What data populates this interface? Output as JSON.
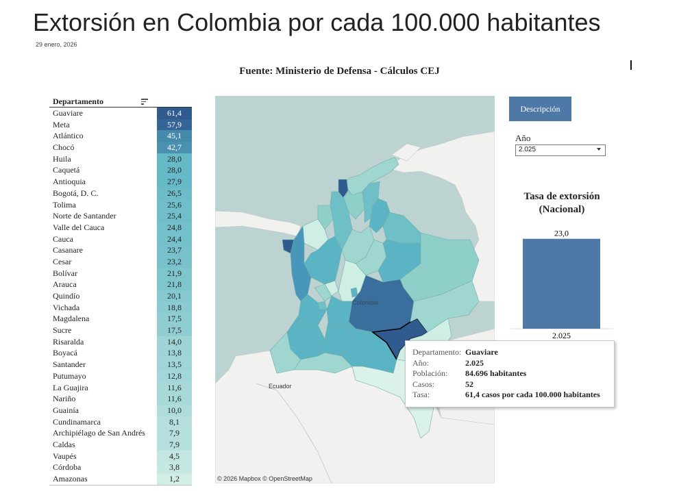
{
  "header": {
    "title": "Extorsión en Colombia por cada 100.000 habitantes",
    "date": "29 enero, 2026",
    "source": "Fuente: Ministerio de Defensa - Cálculos CEJ"
  },
  "table": {
    "column_header": "Departamento",
    "rows": [
      {
        "name": "Guaviare",
        "value": "61,4"
      },
      {
        "name": "Meta",
        "value": "57,9"
      },
      {
        "name": "Atlántico",
        "value": "45,1"
      },
      {
        "name": "Chocó",
        "value": "42,7"
      },
      {
        "name": "Huila",
        "value": "28,0"
      },
      {
        "name": "Caquetá",
        "value": "28,0"
      },
      {
        "name": "Antioquia",
        "value": "27,9"
      },
      {
        "name": "Bogotá, D. C.",
        "value": "26,5"
      },
      {
        "name": "Tolima",
        "value": "25,6"
      },
      {
        "name": "Norte de Santander",
        "value": "25,4"
      },
      {
        "name": "Valle del Cauca",
        "value": "24,8"
      },
      {
        "name": "Cauca",
        "value": "24,4"
      },
      {
        "name": "Casanare",
        "value": "23,7"
      },
      {
        "name": "Cesar",
        "value": "23,2"
      },
      {
        "name": "Bolívar",
        "value": "21,9"
      },
      {
        "name": "Arauca",
        "value": "21,8"
      },
      {
        "name": "Quindío",
        "value": "20,1"
      },
      {
        "name": "Vichada",
        "value": "18,8"
      },
      {
        "name": "Magdalena",
        "value": "17,5"
      },
      {
        "name": "Sucre",
        "value": "17,5"
      },
      {
        "name": "Risaralda",
        "value": "14,0"
      },
      {
        "name": "Boyacá",
        "value": "13,8"
      },
      {
        "name": "Santander",
        "value": "13,5"
      },
      {
        "name": "Putumayo",
        "value": "12,8"
      },
      {
        "name": "La Guajira",
        "value": "11,6"
      },
      {
        "name": "Nariño",
        "value": "11,6"
      },
      {
        "name": "Guainía",
        "value": "10,0"
      },
      {
        "name": "Cundinamarca",
        "value": "8,1"
      },
      {
        "name": "Archipiélago de San Andrés",
        "value": "7,9"
      },
      {
        "name": "Caldas",
        "value": "7,9"
      },
      {
        "name": "Vaupés",
        "value": "4,5"
      },
      {
        "name": "Córdoba",
        "value": "3,8"
      },
      {
        "name": "Amazonas",
        "value": "1,2"
      }
    ]
  },
  "map": {
    "country_label": "Colombia",
    "neighbor_label": "Ecuador",
    "attribution": "© 2026 Mapbox  © OpenStreetMap"
  },
  "controls": {
    "description_button": "Descripción",
    "year_label": "Año",
    "year_value": "2.025"
  },
  "national": {
    "title_line1": "Tasa de extorsión",
    "title_line2": "(Nacional)"
  },
  "chart_data": {
    "type": "bar",
    "categories": [
      "2.025"
    ],
    "values": [
      23.0
    ],
    "value_labels": [
      "23,0"
    ],
    "title": "Tasa de extorsión (Nacional)",
    "ylim": [
      0,
      24
    ],
    "color": "#4e79a7"
  },
  "tooltip": {
    "rows": [
      {
        "key": "Departamento:",
        "value": "Guaviare"
      },
      {
        "key": "Año:",
        "value": "2.025"
      },
      {
        "key": "Población:",
        "value": "84.696 habitantes"
      },
      {
        "key": "Casos:",
        "value": "52"
      },
      {
        "key": "Tasa:",
        "value": "61,4 casos por cada 100.000 habitantes"
      }
    ]
  },
  "colors": {
    "scale_low": "#d6efe6",
    "scale_mid": "#5bb4c4",
    "scale_high": "#2f5b8f",
    "ocean": "#bdd3d1",
    "land": "#f1f1ef",
    "bar": "#4e79a7"
  }
}
